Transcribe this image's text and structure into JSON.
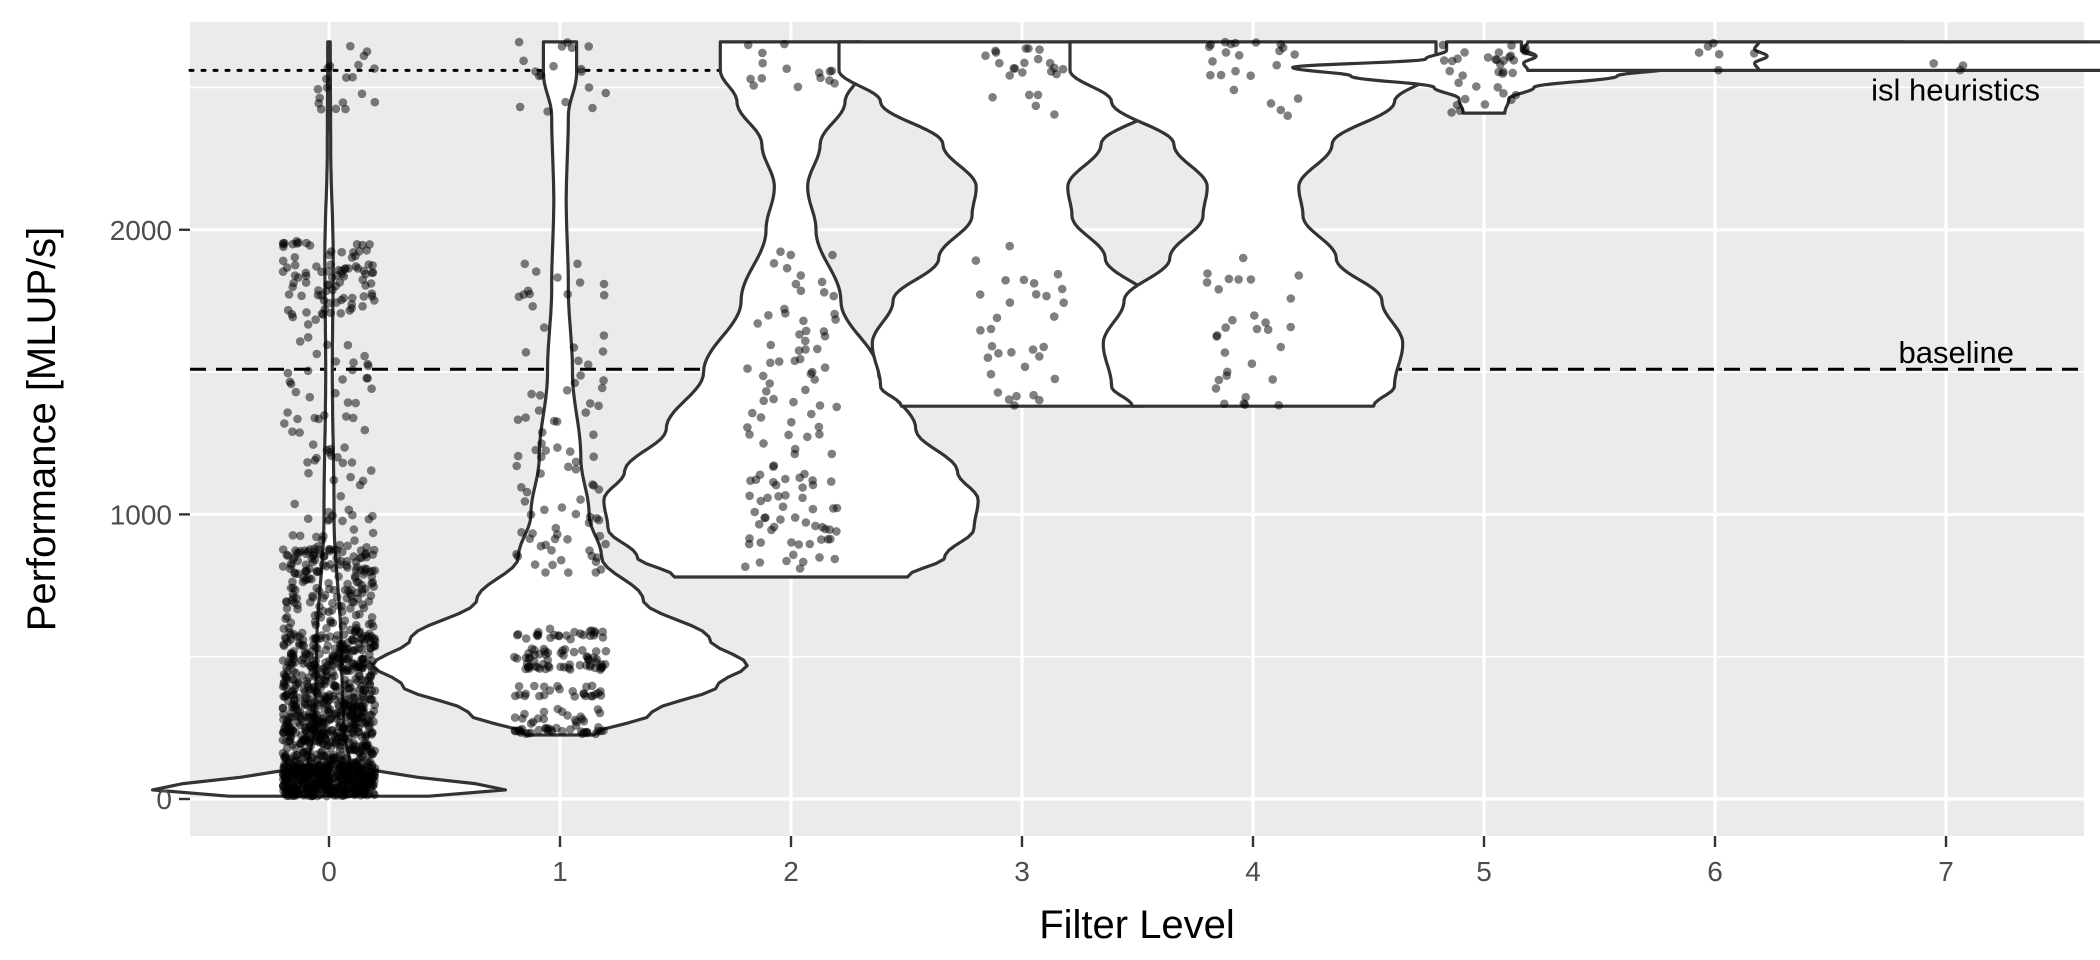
{
  "chart_data": {
    "type": "violin",
    "title": "",
    "xlabel": "Filter Level",
    "ylabel": "Performance [MLUP/s]",
    "x_categories": [
      "0",
      "1",
      "2",
      "3",
      "4",
      "5",
      "6",
      "7"
    ],
    "ylim": [
      -130,
      2730
    ],
    "y_ticks": [
      0,
      1000,
      2000
    ],
    "y_tick_labels": [
      "0",
      "1000",
      "2000"
    ],
    "grid": true,
    "reference_lines": [
      {
        "name": "isl heuristics",
        "value": 2560,
        "style": "dotted"
      },
      {
        "name": "baseline",
        "value": 1510,
        "style": "dashed"
      }
    ],
    "violins": [
      {
        "level": 0,
        "min": 10,
        "max": 2660,
        "profile": [
          [
            10,
            0.24
          ],
          [
            40,
            0.46
          ],
          [
            70,
            0.22
          ],
          [
            120,
            0.05
          ],
          [
            250,
            0.035
          ],
          [
            500,
            0.03
          ],
          [
            1000,
            0.012
          ],
          [
            1500,
            0.008
          ],
          [
            1900,
            0.01
          ],
          [
            2300,
            0.004
          ],
          [
            2660,
            0.003
          ]
        ]
      },
      {
        "level": 1,
        "min": 225,
        "max": 2660,
        "profile": [
          [
            225,
            0.08
          ],
          [
            300,
            0.22
          ],
          [
            400,
            0.38
          ],
          [
            470,
            0.45
          ],
          [
            560,
            0.36
          ],
          [
            700,
            0.2
          ],
          [
            850,
            0.1
          ],
          [
            1000,
            0.07
          ],
          [
            1200,
            0.05
          ],
          [
            1500,
            0.03
          ],
          [
            1800,
            0.02
          ],
          [
            2100,
            0.015
          ],
          [
            2400,
            0.02
          ],
          [
            2550,
            0.04
          ],
          [
            2660,
            0.04
          ]
        ]
      },
      {
        "level": 2,
        "min": 780,
        "max": 2660,
        "profile": [
          [
            780,
            0.28
          ],
          [
            850,
            0.37
          ],
          [
            950,
            0.44
          ],
          [
            1050,
            0.45
          ],
          [
            1150,
            0.4
          ],
          [
            1300,
            0.3
          ],
          [
            1500,
            0.21
          ],
          [
            1750,
            0.12
          ],
          [
            2000,
            0.06
          ],
          [
            2150,
            0.04
          ],
          [
            2300,
            0.07
          ],
          [
            2450,
            0.13
          ],
          [
            2560,
            0.17
          ],
          [
            2660,
            0.17
          ]
        ]
      },
      {
        "level": 3,
        "min": 1380,
        "max": 2660,
        "profile": [
          [
            1380,
            0.29
          ],
          [
            1450,
            0.34
          ],
          [
            1600,
            0.36
          ],
          [
            1750,
            0.31
          ],
          [
            1900,
            0.2
          ],
          [
            2050,
            0.12
          ],
          [
            2150,
            0.11
          ],
          [
            2300,
            0.19
          ],
          [
            2450,
            0.34
          ],
          [
            2560,
            0.44
          ],
          [
            2620,
            0.44
          ],
          [
            2660,
            0.44
          ]
        ]
      },
      {
        "level": 4,
        "min": 1380,
        "max": 2660,
        "profile": [
          [
            1380,
            0.29
          ],
          [
            1450,
            0.34
          ],
          [
            1600,
            0.36
          ],
          [
            1750,
            0.31
          ],
          [
            1900,
            0.2
          ],
          [
            2050,
            0.12
          ],
          [
            2150,
            0.11
          ],
          [
            2300,
            0.19
          ],
          [
            2450,
            0.34
          ],
          [
            2560,
            0.44
          ],
          [
            2620,
            0.44
          ],
          [
            2660,
            0.44
          ]
        ]
      },
      {
        "level": 5,
        "min": 2410,
        "max": 2660,
        "profile": [
          [
            2410,
            0.05
          ],
          [
            2460,
            0.06
          ],
          [
            2500,
            0.12
          ],
          [
            2540,
            0.32
          ],
          [
            2570,
            0.46
          ],
          [
            2600,
            0.14
          ],
          [
            2630,
            0.09
          ],
          [
            2660,
            0.09
          ]
        ]
      },
      {
        "level": 6,
        "min": 2560,
        "max": 2660,
        "profile": [
          [
            2560,
            0.45
          ],
          [
            2585,
            0.46
          ],
          [
            2610,
            0.43
          ],
          [
            2635,
            0.46
          ],
          [
            2660,
            0.45
          ]
        ]
      },
      {
        "level": 7,
        "min": 2560,
        "max": 2660,
        "profile": [
          [
            2560,
            0.45
          ],
          [
            2585,
            0.46
          ],
          [
            2610,
            0.43
          ],
          [
            2635,
            0.46
          ],
          [
            2660,
            0.45
          ]
        ]
      }
    ],
    "points": [
      {
        "level": 0,
        "bands": [
          [
            10,
            120,
            450
          ],
          [
            120,
            300,
            300
          ],
          [
            300,
            480,
            230
          ],
          [
            480,
            590,
            120
          ],
          [
            590,
            720,
            60
          ],
          [
            720,
            880,
            110
          ],
          [
            880,
            1000,
            20
          ],
          [
            1000,
            1500,
            45
          ],
          [
            1500,
            1700,
            15
          ],
          [
            1700,
            1960,
            90
          ],
          [
            2400,
            2660,
            20
          ]
        ]
      },
      {
        "level": 1,
        "bands": [
          [
            225,
            250,
            30
          ],
          [
            250,
            320,
            20
          ],
          [
            360,
            400,
            25
          ],
          [
            450,
            530,
            60
          ],
          [
            560,
            600,
            25
          ],
          [
            780,
            1000,
            30
          ],
          [
            1000,
            1300,
            25
          ],
          [
            1300,
            1600,
            20
          ],
          [
            1600,
            1900,
            15
          ],
          [
            2400,
            2500,
            6
          ],
          [
            2540,
            2660,
            12
          ]
        ]
      },
      {
        "level": 2,
        "bands": [
          [
            800,
            860,
            8
          ],
          [
            880,
            1150,
            45
          ],
          [
            1150,
            1400,
            20
          ],
          [
            1400,
            1600,
            18
          ],
          [
            1600,
            1800,
            15
          ],
          [
            1800,
            1950,
            8
          ],
          [
            2500,
            2660,
            15
          ]
        ]
      },
      {
        "level": 3,
        "bands": [
          [
            1380,
            1450,
            6
          ],
          [
            1450,
            1800,
            20
          ],
          [
            1800,
            1950,
            6
          ],
          [
            2400,
            2500,
            5
          ],
          [
            2540,
            2660,
            18
          ]
        ]
      },
      {
        "level": 4,
        "bands": [
          [
            1380,
            1450,
            6
          ],
          [
            1450,
            1800,
            18
          ],
          [
            1800,
            1950,
            7
          ],
          [
            2400,
            2500,
            5
          ],
          [
            2540,
            2660,
            18
          ]
        ]
      },
      {
        "level": 5,
        "bands": [
          [
            2410,
            2480,
            8
          ],
          [
            2500,
            2660,
            26
          ]
        ]
      },
      {
        "level": 6,
        "bands": [
          [
            2560,
            2660,
            6
          ]
        ]
      },
      {
        "level": 7,
        "bands": [
          [
            2560,
            2660,
            3
          ]
        ]
      }
    ]
  }
}
